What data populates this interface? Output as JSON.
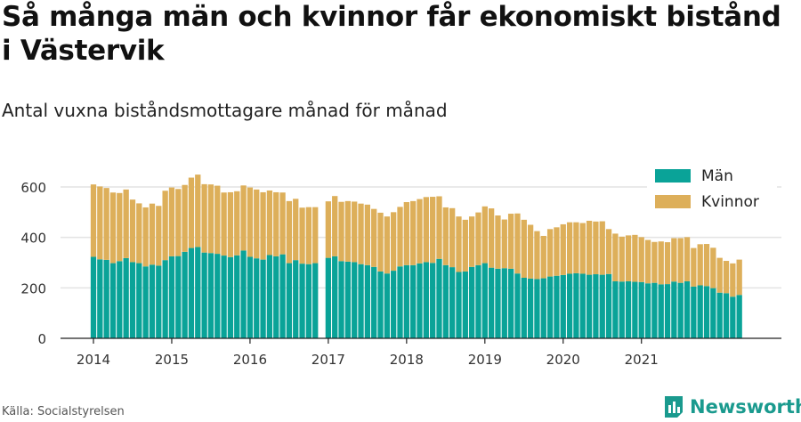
{
  "title": "Så många män och kvinnor får ekonomiskt bistånd i Västervik",
  "subtitle": "Antal vuxna biståndsmottagare månad för månad",
  "source": "Källa: Socialstyrelsen",
  "brand": "Newsworthy",
  "colors": {
    "men": "#0aa398",
    "women": "#ddaf5a",
    "grid": "#e3e3e3",
    "axis": "#222222",
    "text": "#333333"
  },
  "chart_data": {
    "type": "bar",
    "stacked": true,
    "x_ticks": [
      "2014",
      "2015",
      "2016",
      "2017",
      "2018",
      "2019",
      "2020",
      "2021"
    ],
    "y_ticks": [
      "0",
      "200",
      "400",
      "600"
    ],
    "ylim": [
      0,
      700
    ],
    "grid": "horizontal",
    "legend_position": "top-right",
    "start_month": "2014-01",
    "series": [
      {
        "name": "Män",
        "values": [
          323,
          313,
          311,
          298,
          306,
          318,
          302,
          298,
          285,
          292,
          288,
          310,
          325,
          326,
          343,
          358,
          362,
          340,
          338,
          335,
          328,
          322,
          329,
          348,
          323,
          317,
          312,
          330,
          325,
          333,
          298,
          310,
          296,
          294,
          298,
          null,
          319,
          325,
          306,
          304,
          302,
          294,
          290,
          283,
          265,
          257,
          268,
          285,
          290,
          290,
          297,
          302,
          299,
          315,
          290,
          282,
          263,
          265,
          283,
          290,
          298,
          280,
          276,
          278,
          276,
          257,
          240,
          237,
          235,
          238,
          245,
          248,
          251,
          256,
          258,
          256,
          252,
          254,
          252,
          255,
          226,
          225,
          226,
          224,
          223,
          218,
          220,
          214,
          215,
          225,
          220,
          226,
          205,
          210,
          207,
          199,
          181,
          179,
          165,
          172
        ]
      },
      {
        "name": "Kvinnor",
        "values": [
          287,
          289,
          285,
          280,
          270,
          272,
          248,
          237,
          234,
          242,
          237,
          275,
          273,
          266,
          265,
          279,
          287,
          271,
          272,
          270,
          250,
          257,
          254,
          258,
          275,
          273,
          267,
          256,
          254,
          245,
          246,
          243,
          222,
          226,
          222,
          null,
          224,
          239,
          235,
          240,
          240,
          240,
          240,
          230,
          233,
          226,
          232,
          236,
          250,
          254,
          255,
          258,
          262,
          248,
          229,
          234,
          220,
          205,
          200,
          209,
          225,
          235,
          211,
          193,
          218,
          238,
          230,
          213,
          190,
          168,
          188,
          192,
          201,
          204,
          202,
          201,
          214,
          209,
          212,
          178,
          189,
          178,
          182,
          186,
          178,
          172,
          162,
          170,
          166,
          172,
          177,
          175,
          153,
          163,
          167,
          160,
          138,
          128,
          132,
          140
        ]
      }
    ]
  }
}
